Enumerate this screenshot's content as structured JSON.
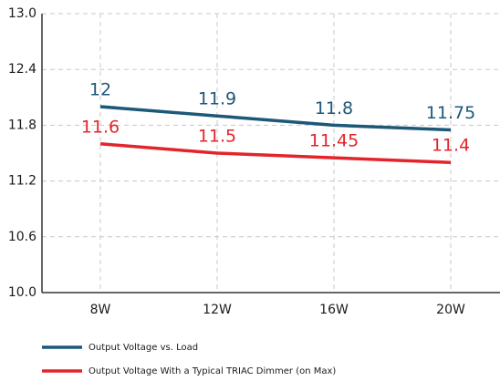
{
  "chart_data": {
    "type": "line",
    "categories": [
      "8W",
      "12W",
      "16W",
      "20W"
    ],
    "series": [
      {
        "name": "Output Voltage vs. Load",
        "color": "#1d5878",
        "values": [
          12,
          11.9,
          11.8,
          11.75
        ]
      },
      {
        "name": "Output Voltage With a Typical TRIAC Dimmer (on Max)",
        "color": "#e3242b",
        "values": [
          11.6,
          11.5,
          11.45,
          11.4
        ]
      }
    ],
    "ylim": [
      10.0,
      13.0
    ],
    "yticks": [
      {
        "value": 10.0,
        "label": "10.0"
      },
      10.6,
      11.2,
      11.8,
      12.4,
      {
        "value": 13.0,
        "label": "13.0"
      }
    ],
    "grid": true,
    "legend": "bottom"
  }
}
